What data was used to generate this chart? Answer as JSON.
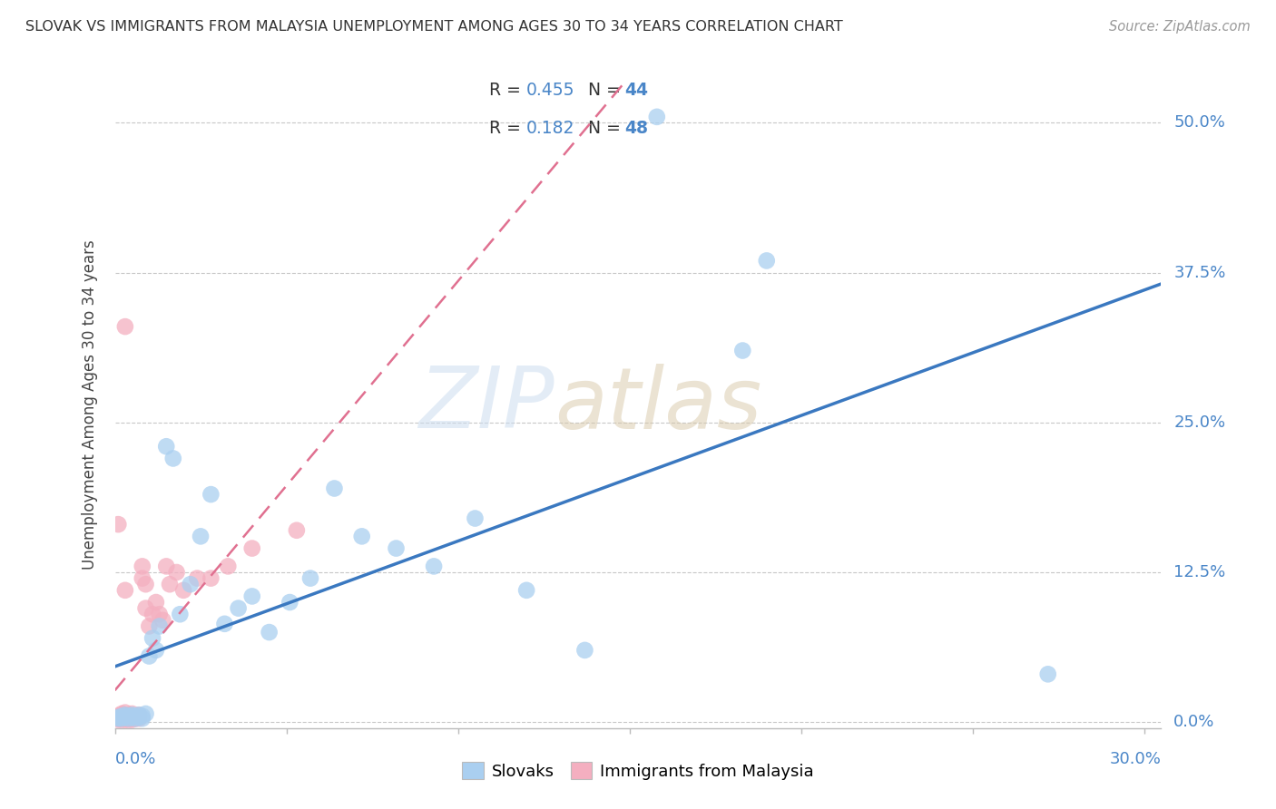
{
  "title": "SLOVAK VS IMMIGRANTS FROM MALAYSIA UNEMPLOYMENT AMONG AGES 30 TO 34 YEARS CORRELATION CHART",
  "source": "Source: ZipAtlas.com",
  "ylabel": "Unemployment Among Ages 30 to 34 years",
  "y_tick_labels": [
    "0.0%",
    "12.5%",
    "25.0%",
    "37.5%",
    "50.0%"
  ],
  "y_tick_values": [
    0.0,
    0.125,
    0.25,
    0.375,
    0.5
  ],
  "xlim": [
    0.0,
    0.305
  ],
  "ylim": [
    -0.005,
    0.535
  ],
  "label_slovaks": "Slovaks",
  "label_malaysia": "Immigrants from Malaysia",
  "color_slovaks": "#aacff0",
  "color_malaysia": "#f4afc0",
  "color_line_slovaks": "#3a78c0",
  "color_line_malaysia": "#e07090",
  "slovaks_x": [
    0.001,
    0.001,
    0.002,
    0.002,
    0.003,
    0.003,
    0.004,
    0.004,
    0.005,
    0.005,
    0.006,
    0.006,
    0.007,
    0.007,
    0.008,
    0.008,
    0.009,
    0.01,
    0.011,
    0.012,
    0.013,
    0.015,
    0.017,
    0.019,
    0.022,
    0.025,
    0.028,
    0.032,
    0.036,
    0.04,
    0.045,
    0.051,
    0.057,
    0.064,
    0.072,
    0.082,
    0.093,
    0.105,
    0.12,
    0.137,
    0.158,
    0.183,
    0.272,
    0.19
  ],
  "slovaks_y": [
    0.003,
    0.004,
    0.003,
    0.005,
    0.004,
    0.006,
    0.003,
    0.005,
    0.004,
    0.006,
    0.003,
    0.005,
    0.004,
    0.006,
    0.003,
    0.005,
    0.007,
    0.055,
    0.07,
    0.06,
    0.08,
    0.23,
    0.22,
    0.09,
    0.115,
    0.155,
    0.19,
    0.082,
    0.095,
    0.105,
    0.075,
    0.1,
    0.12,
    0.195,
    0.155,
    0.145,
    0.13,
    0.17,
    0.11,
    0.06,
    0.505,
    0.31,
    0.04,
    0.385
  ],
  "malaysia_x": [
    0.001,
    0.001,
    0.001,
    0.001,
    0.002,
    0.002,
    0.002,
    0.002,
    0.002,
    0.003,
    0.003,
    0.003,
    0.003,
    0.003,
    0.004,
    0.004,
    0.004,
    0.004,
    0.005,
    0.005,
    0.005,
    0.005,
    0.006,
    0.006,
    0.007,
    0.007,
    0.008,
    0.008,
    0.009,
    0.009,
    0.01,
    0.011,
    0.012,
    0.013,
    0.014,
    0.015,
    0.016,
    0.018,
    0.02,
    0.024,
    0.028,
    0.033,
    0.04,
    0.053,
    0.001,
    0.003,
    0.003,
    0.003
  ],
  "malaysia_y": [
    0.002,
    0.003,
    0.004,
    0.005,
    0.002,
    0.003,
    0.004,
    0.006,
    0.007,
    0.002,
    0.003,
    0.005,
    0.006,
    0.008,
    0.002,
    0.003,
    0.004,
    0.006,
    0.002,
    0.003,
    0.005,
    0.007,
    0.003,
    0.005,
    0.003,
    0.006,
    0.12,
    0.13,
    0.095,
    0.115,
    0.08,
    0.09,
    0.1,
    0.09,
    0.085,
    0.13,
    0.115,
    0.125,
    0.11,
    0.12,
    0.12,
    0.13,
    0.145,
    0.16,
    0.165,
    0.33,
    0.11,
    0.005
  ]
}
